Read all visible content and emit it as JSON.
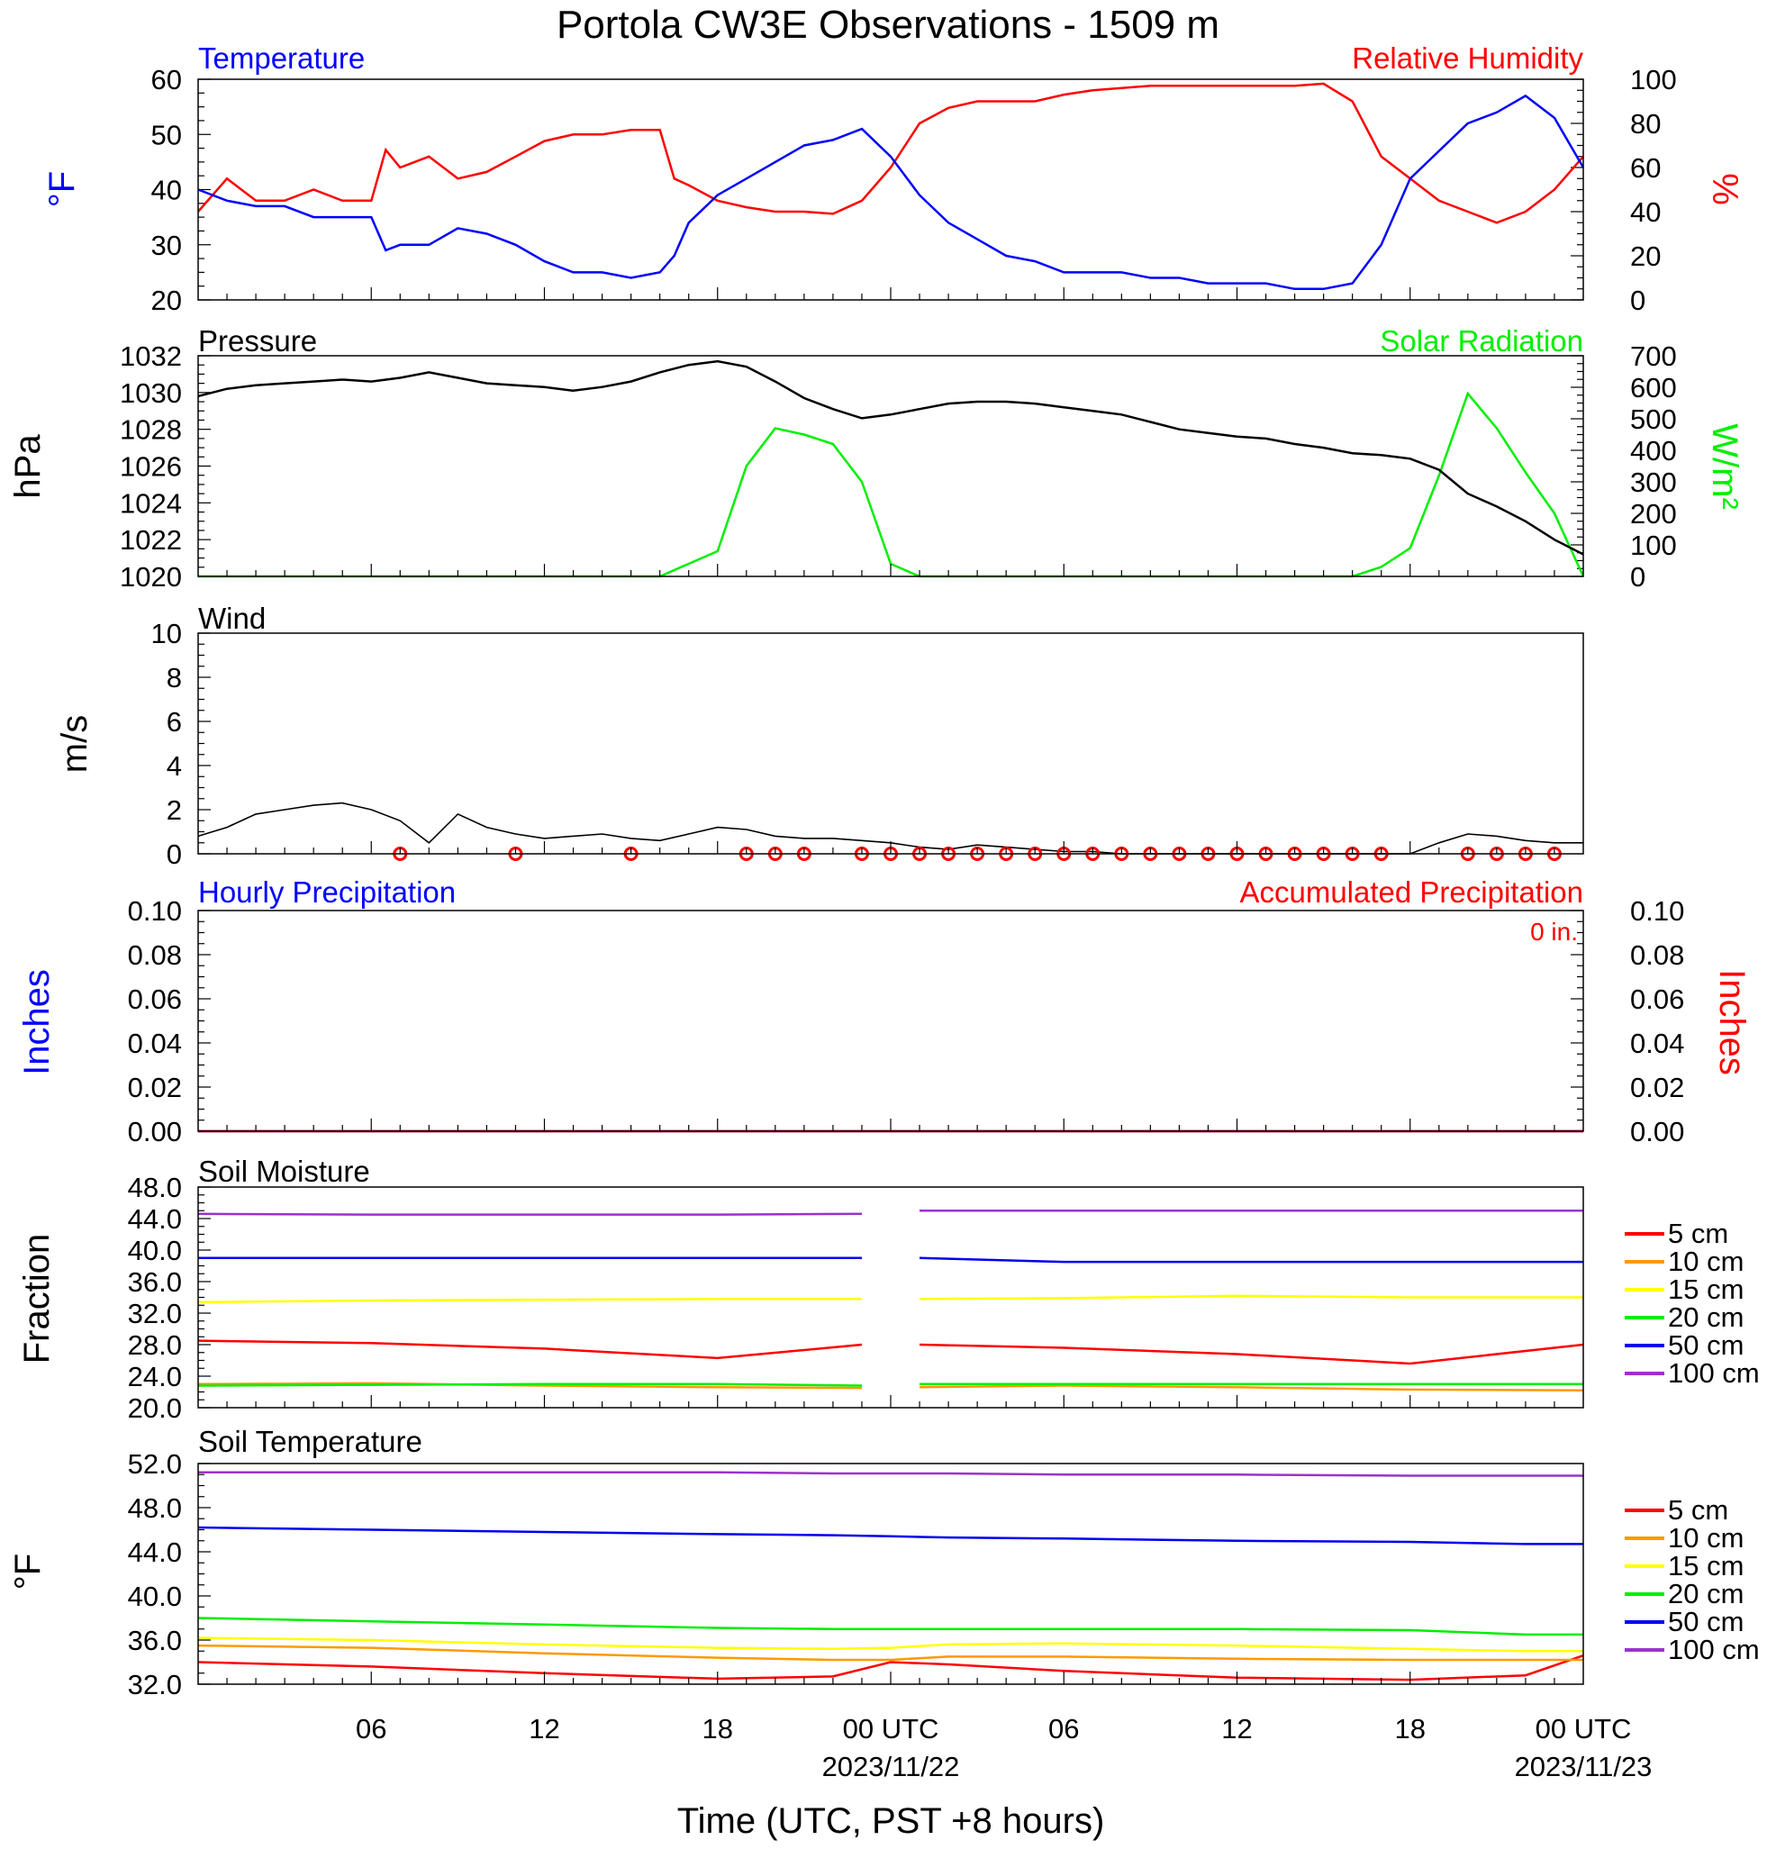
{
  "title": "Portola CW3E Observations - 1509 m",
  "x_axis": {
    "label": "Time (UTC, PST +8 hours)",
    "hours_total": 48,
    "tick_labels": [
      "06",
      "12",
      "18",
      "00 UTC",
      "06",
      "12",
      "18",
      "00 UTC"
    ],
    "tick_hours": [
      6,
      12,
      18,
      24,
      30,
      36,
      42,
      48
    ],
    "date_labels": [
      {
        "hour": 24,
        "text": "2023/11/22"
      },
      {
        "hour": 48,
        "text": "2023/11/23"
      }
    ]
  },
  "colors": {
    "temperature": "#0000ff",
    "humidity": "#ff0000",
    "pressure": "#000000",
    "solar": "#00ee00",
    "wind": "#000000",
    "barb": "#ff0000",
    "hourly": "#0000ff",
    "accum": "#ff0000",
    "depth_5": "#ff0000",
    "depth_10": "#ff9900",
    "depth_15": "#ffff00",
    "depth_20": "#00ee00",
    "depth_50": "#0000ee",
    "depth_100": "#9933cc"
  },
  "panels": {
    "temp_rh": {
      "left_label": "Temperature",
      "right_label": "Relative Humidity",
      "left_unit": "°F",
      "right_unit": "%",
      "left_ticks": [
        "60",
        "50",
        "40",
        "30",
        "20"
      ],
      "right_ticks": [
        "100",
        "80",
        "60",
        "40",
        "20",
        "0"
      ]
    },
    "pressure": {
      "left_label": "Pressure",
      "right_label": "Solar Radiation",
      "left_unit": "hPa",
      "right_unit": "W/m²",
      "left_ticks": [
        "1032",
        "1030",
        "1028",
        "1026",
        "1024",
        "1022",
        "1020"
      ],
      "right_ticks": [
        "700",
        "600",
        "500",
        "400",
        "300",
        "200",
        "100",
        "0"
      ]
    },
    "wind": {
      "left_label": "Wind",
      "left_unit": "m/s",
      "left_ticks": [
        "10",
        "8",
        "6",
        "4",
        "2",
        "0"
      ]
    },
    "precip": {
      "left_label": "Hourly Precipitation",
      "right_label": "Accumulated Precipitation",
      "left_unit": "Inches",
      "right_unit": "Inches",
      "total": "0 in.",
      "left_ticks": [
        "0.10",
        "0.08",
        "0.06",
        "0.04",
        "0.02",
        "0.00"
      ],
      "right_ticks": [
        "0.10",
        "0.08",
        "0.06",
        "0.04",
        "0.02",
        "0.00"
      ]
    },
    "soil_moisture": {
      "left_label": "Soil Moisture",
      "left_unit": "Fraction",
      "left_ticks": [
        "48.0",
        "44.0",
        "40.0",
        "36.0",
        "32.0",
        "28.0",
        "24.0",
        "20.0"
      ],
      "legend": [
        "5 cm",
        "10 cm",
        "15 cm",
        "20 cm",
        "50 cm",
        "100 cm"
      ]
    },
    "soil_temp": {
      "left_label": "Soil Temperature",
      "left_unit": "°F",
      "left_ticks": [
        "52.0",
        "48.0",
        "44.0",
        "40.0",
        "36.0",
        "32.0"
      ],
      "legend": [
        "5 cm",
        "10 cm",
        "15 cm",
        "20 cm",
        "50 cm",
        "100 cm"
      ]
    }
  },
  "chart_data": [
    {
      "type": "line",
      "panel": "temp_rh",
      "ylim": [
        20,
        60
      ],
      "ylim_right": [
        0,
        100
      ],
      "x_hours": [
        0,
        1,
        2,
        3,
        4,
        5,
        6,
        6.5,
        7,
        8,
        9,
        10,
        11,
        12,
        13,
        14,
        15,
        16,
        16.5,
        17,
        18,
        19,
        20,
        21,
        22,
        23,
        24,
        25,
        26,
        27,
        28,
        29,
        30,
        31,
        32,
        33,
        34,
        35,
        36,
        37,
        38,
        39,
        40,
        41,
        42,
        43,
        44,
        45,
        46,
        47,
        48
      ],
      "series": [
        {
          "name": "Temperature",
          "axis": "left",
          "values": [
            40,
            38,
            37,
            37,
            35,
            35,
            35,
            29,
            30,
            30,
            33,
            32,
            30,
            27,
            25,
            25,
            24,
            25,
            28,
            34,
            39,
            42,
            45,
            48,
            49,
            51,
            46,
            39,
            34,
            31,
            28,
            27,
            25,
            25,
            25,
            24,
            24,
            23,
            23,
            23,
            22,
            22,
            23,
            30,
            42,
            47,
            52,
            54,
            57,
            53,
            44
          ]
        },
        {
          "name": "Relative Humidity",
          "axis": "left_rh",
          "values": [
            40,
            55,
            45,
            45,
            50,
            45,
            45,
            68,
            60,
            65,
            55,
            58,
            65,
            72,
            75,
            75,
            77,
            77,
            55,
            52,
            45,
            42,
            40,
            40,
            39,
            45,
            60,
            80,
            87,
            90,
            90,
            90,
            93,
            95,
            96,
            97,
            97,
            97,
            97,
            97,
            97,
            98,
            90,
            65,
            55,
            45,
            40,
            35,
            40,
            50,
            65
          ]
        }
      ]
    },
    {
      "type": "line",
      "panel": "pressure",
      "ylim": [
        1020,
        1032
      ],
      "ylim_right": [
        0,
        700
      ],
      "x_hours": [
        0,
        1,
        2,
        3,
        4,
        5,
        6,
        7,
        8,
        9,
        10,
        11,
        12,
        13,
        14,
        15,
        16,
        17,
        18,
        19,
        20,
        21,
        22,
        23,
        24,
        25,
        26,
        27,
        28,
        29,
        30,
        31,
        32,
        33,
        34,
        35,
        36,
        37,
        38,
        39,
        40,
        41,
        42,
        43,
        44,
        45,
        46,
        47,
        48
      ],
      "series": [
        {
          "name": "Pressure",
          "axis": "left",
          "values": [
            1029.8,
            1030.2,
            1030.4,
            1030.5,
            1030.6,
            1030.7,
            1030.6,
            1030.8,
            1031.1,
            1030.8,
            1030.5,
            1030.4,
            1030.3,
            1030.1,
            1030.3,
            1030.6,
            1031.1,
            1031.5,
            1031.7,
            1031.4,
            1030.6,
            1029.7,
            1029.1,
            1028.6,
            1028.8,
            1029.1,
            1029.4,
            1029.5,
            1029.5,
            1029.4,
            1029.2,
            1029.0,
            1028.8,
            1028.4,
            1028.0,
            1027.8,
            1027.6,
            1027.5,
            1027.2,
            1027.0,
            1026.7,
            1026.6,
            1026.4,
            1025.8,
            1024.5,
            1023.8,
            1023.0,
            1022.0,
            1021.2
          ]
        },
        {
          "name": "Solar Radiation",
          "axis": "right",
          "values": [
            0,
            0,
            0,
            0,
            0,
            0,
            0,
            0,
            0,
            0,
            0,
            0,
            0,
            0,
            0,
            0,
            0,
            40,
            80,
            350,
            470,
            450,
            420,
            300,
            40,
            0,
            0,
            0,
            0,
            0,
            0,
            0,
            0,
            0,
            0,
            0,
            0,
            0,
            0,
            0,
            0,
            30,
            90,
            320,
            580,
            470,
            330,
            200,
            0
          ]
        }
      ]
    },
    {
      "type": "line",
      "panel": "wind",
      "ylim": [
        0,
        10
      ],
      "x_hours": [
        0,
        1,
        2,
        3,
        4,
        5,
        6,
        7,
        8,
        9,
        10,
        11,
        12,
        13,
        14,
        15,
        16,
        17,
        18,
        19,
        20,
        21,
        22,
        23,
        24,
        25,
        26,
        27,
        28,
        29,
        30,
        31,
        32,
        33,
        34,
        35,
        36,
        37,
        38,
        39,
        40,
        41,
        42,
        43,
        44,
        45,
        46,
        47,
        48
      ],
      "series": [
        {
          "name": "Wind",
          "values": [
            0.8,
            1.2,
            1.8,
            2.0,
            2.2,
            2.3,
            2.0,
            1.5,
            0.5,
            1.8,
            1.2,
            0.9,
            0.7,
            0.8,
            0.9,
            0.7,
            0.6,
            0.9,
            1.2,
            1.1,
            0.8,
            0.7,
            0.7,
            0.6,
            0.5,
            0.3,
            0.2,
            0.4,
            0.3,
            0.2,
            0.1,
            0.1,
            0,
            0,
            0,
            0,
            0,
            0,
            0,
            0,
            0,
            0,
            0,
            0.5,
            0.9,
            0.8,
            0.6,
            0.5,
            0.5
          ]
        }
      ],
      "calm_hours": [
        7,
        11,
        15,
        19,
        20,
        21,
        23,
        24,
        25,
        26,
        27,
        28,
        29,
        30,
        31,
        32,
        33,
        34,
        35,
        36,
        37,
        38,
        39,
        40,
        41,
        44,
        45,
        46,
        47
      ]
    },
    {
      "type": "line",
      "panel": "precip",
      "ylim": [
        0,
        0.1
      ],
      "x_hours": [
        0,
        48
      ],
      "series": [
        {
          "name": "Hourly Precipitation",
          "axis": "left",
          "values": [
            0,
            0
          ]
        },
        {
          "name": "Accumulated Precipitation",
          "axis": "right",
          "values": [
            0,
            0
          ]
        }
      ]
    },
    {
      "type": "line",
      "panel": "soil_moisture",
      "ylim": [
        20,
        48
      ],
      "gap_hours": [
        23.1,
        24.9
      ],
      "x_hours": [
        0,
        6,
        12,
        18,
        23,
        25,
        30,
        36,
        42,
        48
      ],
      "series": [
        {
          "name": "5 cm",
          "values": [
            28.5,
            28.2,
            27.5,
            26.3,
            28.0,
            28.0,
            27.6,
            26.8,
            25.6,
            28.0
          ]
        },
        {
          "name": "10 cm",
          "values": [
            23.0,
            23.1,
            22.8,
            22.6,
            22.5,
            22.6,
            22.8,
            22.6,
            22.3,
            22.2
          ]
        },
        {
          "name": "15 cm",
          "values": [
            33.4,
            33.6,
            33.7,
            33.8,
            33.8,
            33.8,
            33.9,
            34.2,
            34.0,
            34.0
          ]
        },
        {
          "name": "20 cm",
          "values": [
            22.8,
            22.9,
            23.0,
            23.0,
            22.8,
            23.0,
            23.0,
            23.0,
            23.0,
            23.0
          ]
        },
        {
          "name": "50 cm",
          "values": [
            39.0,
            39.0,
            39.0,
            39.0,
            39.0,
            39.0,
            38.5,
            38.5,
            38.5,
            38.5
          ]
        },
        {
          "name": "100 cm",
          "values": [
            44.6,
            44.5,
            44.5,
            44.5,
            44.6,
            45.0,
            45.0,
            45.0,
            45.0,
            45.0
          ]
        }
      ]
    },
    {
      "type": "line",
      "panel": "soil_temp",
      "ylim": [
        32,
        52
      ],
      "x_hours": [
        0,
        6,
        12,
        18,
        22,
        24,
        26,
        30,
        36,
        42,
        46,
        48
      ],
      "series": [
        {
          "name": "5 cm",
          "values": [
            34.0,
            33.6,
            33.0,
            32.5,
            32.7,
            34.0,
            33.8,
            33.2,
            32.6,
            32.4,
            32.8,
            34.6
          ]
        },
        {
          "name": "10 cm",
          "values": [
            35.5,
            35.3,
            34.8,
            34.4,
            34.2,
            34.2,
            34.5,
            34.5,
            34.3,
            34.2,
            34.2,
            34.2
          ]
        },
        {
          "name": "15 cm",
          "values": [
            36.2,
            36.0,
            35.6,
            35.3,
            35.2,
            35.3,
            35.6,
            35.7,
            35.5,
            35.2,
            35.0,
            35.0
          ]
        },
        {
          "name": "20 cm",
          "values": [
            38.0,
            37.7,
            37.4,
            37.1,
            37.0,
            37.0,
            37.0,
            37.0,
            37.0,
            36.9,
            36.5,
            36.5
          ]
        },
        {
          "name": "50 cm",
          "values": [
            46.2,
            46.0,
            45.8,
            45.6,
            45.5,
            45.4,
            45.3,
            45.2,
            45.0,
            44.9,
            44.7,
            44.7
          ]
        },
        {
          "name": "100 cm",
          "values": [
            51.2,
            51.2,
            51.2,
            51.2,
            51.1,
            51.1,
            51.1,
            51.0,
            51.0,
            50.9,
            50.9,
            50.9
          ]
        }
      ]
    }
  ]
}
